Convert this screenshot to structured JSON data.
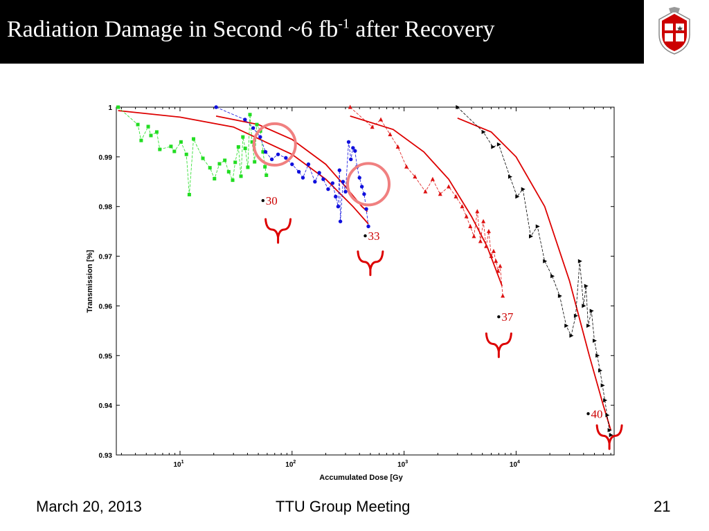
{
  "slide": {
    "title_main": "Radiation Damage in Second ~6 fb",
    "title_sup": "-1",
    "title_end": " after Recovery",
    "footer_date": "March 20, 2013",
    "footer_meeting": "TTU Group Meeting",
    "footer_page": "21"
  },
  "colors": {
    "title_bg": "#000000",
    "fit_curve": "#dd0000",
    "circle": "#f08080",
    "brace": "#dd0000"
  },
  "chart_data": {
    "type": "scatter",
    "xscale": "log",
    "xlim": [
      2.7,
      75000
    ],
    "ylim": [
      0.93,
      1.0
    ],
    "xlabel": "Accumulated Dose [Gy",
    "ylabel": "Transmission [%]",
    "xtick_labels": [
      {
        "base": "10",
        "exp": "1",
        "value": 10
      },
      {
        "base": "10",
        "exp": "2",
        "value": 100
      },
      {
        "base": "10",
        "exp": "3",
        "value": 1000
      },
      {
        "base": "10",
        "exp": "4",
        "value": 10000
      }
    ],
    "ytick_labels": [
      "0.93",
      "0.94",
      "0.95",
      "0.96",
      "0.97",
      "0.98",
      "0.99",
      "1"
    ],
    "yticks": [
      0.93,
      0.94,
      0.95,
      0.96,
      0.97,
      0.98,
      0.99,
      1.0
    ],
    "series": [
      {
        "color": "#22dd22",
        "marker": "square",
        "points": [
          [
            2.8,
            1.0
          ],
          [
            4.2,
            0.9965
          ],
          [
            4.5,
            0.9933
          ],
          [
            5.2,
            0.9961
          ],
          [
            5.5,
            0.9943
          ],
          [
            6.2,
            0.995
          ],
          [
            6.6,
            0.9915
          ],
          [
            8.3,
            0.9921
          ],
          [
            8.9,
            0.9911
          ],
          [
            10.2,
            0.993
          ],
          [
            11.4,
            0.9905
          ],
          [
            12.1,
            0.9824
          ],
          [
            13.2,
            0.9936
          ],
          [
            16.0,
            0.9897
          ],
          [
            18.5,
            0.9878
          ],
          [
            20.3,
            0.9856
          ],
          [
            22.5,
            0.9886
          ],
          [
            25.1,
            0.9893
          ],
          [
            27.2,
            0.987
          ],
          [
            29.5,
            0.9853
          ],
          [
            31.1,
            0.9889
          ],
          [
            33.2,
            0.992
          ],
          [
            35.0,
            0.9861
          ],
          [
            36.4,
            0.994
          ],
          [
            38.2,
            0.9917
          ],
          [
            40.3,
            0.9879
          ],
          [
            42.1,
            0.9985
          ],
          [
            44.0,
            0.993
          ],
          [
            46.3,
            0.989
          ],
          [
            48.5,
            0.9965
          ],
          [
            52.2,
            0.9952
          ],
          [
            55.1,
            0.991
          ],
          [
            57.3,
            0.988
          ],
          [
            59.0,
            0.9863
          ]
        ]
      },
      {
        "color": "#1010dd",
        "marker": "circle",
        "points": [
          [
            21,
            1.0
          ],
          [
            38,
            0.9975
          ],
          [
            45,
            0.9958
          ],
          [
            52,
            0.994
          ],
          [
            58,
            0.991
          ],
          [
            66,
            0.9895
          ],
          [
            75,
            0.9905
          ],
          [
            88,
            0.9898
          ],
          [
            100,
            0.9885
          ],
          [
            115,
            0.987
          ],
          [
            125,
            0.9858
          ],
          [
            140,
            0.9885
          ],
          [
            160,
            0.985
          ],
          [
            175,
            0.9868
          ],
          [
            190,
            0.9855
          ],
          [
            210,
            0.9835
          ],
          [
            230,
            0.9847
          ],
          [
            245,
            0.982
          ],
          [
            258,
            0.98
          ],
          [
            265,
            0.9873
          ],
          [
            270,
            0.977
          ],
          [
            285,
            0.985
          ],
          [
            300,
            0.983
          ],
          [
            320,
            0.993
          ],
          [
            335,
            0.9895
          ],
          [
            350,
            0.9918
          ],
          [
            365,
            0.9912
          ],
          [
            380,
            0.988
          ],
          [
            400,
            0.9858
          ],
          [
            420,
            0.984
          ],
          [
            440,
            0.9825
          ],
          [
            460,
            0.9795
          ],
          [
            480,
            0.976
          ]
        ]
      },
      {
        "color": "#dd1111",
        "marker": "triangle-up",
        "points": [
          [
            330,
            1.0
          ],
          [
            520,
            0.996
          ],
          [
            620,
            0.9975
          ],
          [
            750,
            0.9945
          ],
          [
            880,
            0.992
          ],
          [
            1050,
            0.988
          ],
          [
            1250,
            0.986
          ],
          [
            1550,
            0.983
          ],
          [
            1800,
            0.9855
          ],
          [
            2100,
            0.9825
          ],
          [
            2500,
            0.984
          ],
          [
            2900,
            0.982
          ],
          [
            3300,
            0.98
          ],
          [
            3600,
            0.978
          ],
          [
            3900,
            0.976
          ],
          [
            4200,
            0.974
          ],
          [
            4500,
            0.979
          ],
          [
            4800,
            0.973
          ],
          [
            5100,
            0.977
          ],
          [
            5400,
            0.972
          ],
          [
            5700,
            0.975
          ],
          [
            6000,
            0.97
          ],
          [
            6300,
            0.971
          ],
          [
            6600,
            0.969
          ],
          [
            6900,
            0.967
          ],
          [
            7200,
            0.968
          ],
          [
            7600,
            0.962
          ]
        ]
      },
      {
        "color": "#000000",
        "marker": "triangle-right",
        "points": [
          [
            3000,
            1.0
          ],
          [
            5100,
            0.995
          ],
          [
            6200,
            0.992
          ],
          [
            7000,
            0.9925
          ],
          [
            8800,
            0.986
          ],
          [
            10200,
            0.982
          ],
          [
            11500,
            0.9835
          ],
          [
            13500,
            0.974
          ],
          [
            15500,
            0.976
          ],
          [
            18000,
            0.969
          ],
          [
            21000,
            0.966
          ],
          [
            24500,
            0.962
          ],
          [
            28000,
            0.956
          ],
          [
            31000,
            0.954
          ],
          [
            34000,
            0.958
          ],
          [
            37000,
            0.969
          ],
          [
            40000,
            0.96
          ],
          [
            42000,
            0.964
          ],
          [
            44000,
            0.956
          ],
          [
            47000,
            0.959
          ],
          [
            50000,
            0.953
          ],
          [
            53000,
            0.95
          ],
          [
            56000,
            0.947
          ],
          [
            59000,
            0.944
          ],
          [
            62000,
            0.941
          ],
          [
            65000,
            0.938
          ],
          [
            68000,
            0.935
          ],
          [
            70000,
            0.934
          ]
        ]
      }
    ],
    "fits": [
      [
        [
          2.8,
          0.9993
        ],
        [
          10,
          0.998
        ],
        [
          30,
          0.996
        ],
        [
          100,
          0.9905
        ],
        [
          200,
          0.9855
        ],
        [
          350,
          0.98
        ],
        [
          480,
          0.9765
        ]
      ],
      [
        [
          21,
          0.9982
        ],
        [
          50,
          0.9965
        ],
        [
          100,
          0.9935
        ],
        [
          200,
          0.9885
        ],
        [
          300,
          0.984
        ],
        [
          420,
          0.98
        ],
        [
          470,
          0.979
        ]
      ],
      [
        [
          330,
          0.9982
        ],
        [
          800,
          0.9955
        ],
        [
          1500,
          0.991
        ],
        [
          2500,
          0.9855
        ],
        [
          4000,
          0.978
        ],
        [
          5500,
          0.972
        ],
        [
          7500,
          0.964
        ]
      ],
      [
        [
          3000,
          0.9978
        ],
        [
          6000,
          0.995
        ],
        [
          10000,
          0.99
        ],
        [
          18000,
          0.98
        ],
        [
          30000,
          0.965
        ],
        [
          45000,
          0.95
        ],
        [
          60000,
          0.94
        ],
        [
          70000,
          0.935
        ]
      ]
    ],
    "annotations": [
      {
        "text": "30",
        "x": 55,
        "y": 0.9812
      },
      {
        "text": "33",
        "x": 450,
        "y": 0.9741
      },
      {
        "text": "37",
        "x": 7000,
        "y": 0.9578
      },
      {
        "text": "40",
        "x": 44000,
        "y": 0.9383
      }
    ],
    "circles": [
      [
        70,
        0.9925
      ],
      [
        480,
        0.9845
      ]
    ],
    "braces": [
      [
        75,
        0.9755
      ],
      [
        500,
        0.969
      ],
      [
        7000,
        0.9525
      ],
      [
        68000,
        0.934
      ]
    ]
  }
}
